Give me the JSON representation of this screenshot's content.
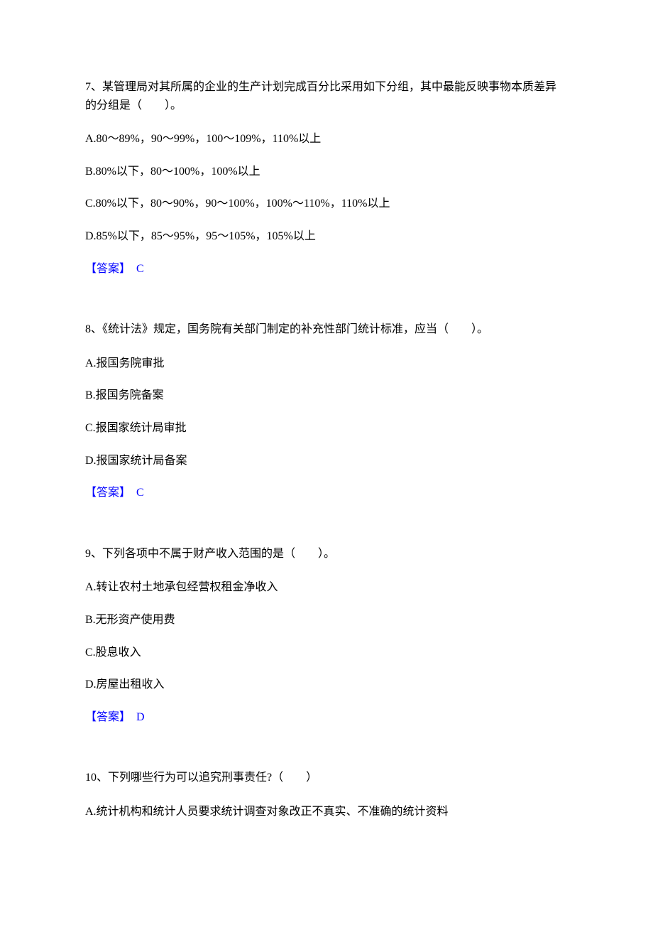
{
  "text_color": "#000000",
  "answer_color": "#0000ff",
  "background_color": "#ffffff",
  "font_family": "SimSun",
  "font_size": 16,
  "questions": [
    {
      "number": "7、",
      "text": "某管理局对其所属的企业的生产计划完成百分比采用如下分组，其中最能反映事物本质差异的分组是（　　）。",
      "options": [
        "A.80～89%，90～99%，100～109%，110%以上",
        "B.80%以下，80～100%，100%以上",
        "C.80%以下，80～90%，90～100%，100%～110%，110%以上",
        "D.85%以下，85～95%，95～105%，105%以上"
      ],
      "answer_label": "【答案】",
      "answer_value": "C"
    },
    {
      "number": "8、",
      "text": "《统计法》规定，国务院有关部门制定的补充性部门统计标准，应当（　　）。",
      "options": [
        "A.报国务院审批",
        "B.报国务院备案",
        "C.报国家统计局审批",
        "D.报国家统计局备案"
      ],
      "answer_label": "【答案】",
      "answer_value": "C"
    },
    {
      "number": "9、",
      "text": "下列各项中不属于财产收入范围的是（　　）。",
      "options": [
        "A.转让农村土地承包经营权租金净收入",
        "B.无形资产使用费",
        "C.股息收入",
        "D.房屋出租收入"
      ],
      "answer_label": "【答案】",
      "answer_value": "D"
    },
    {
      "number": "10、",
      "text": "下列哪些行为可以追究刑事责任?（　　）",
      "options": [
        "A.统计机构和统计人员要求统计调查对象改正不真实、不准确的统计资料"
      ],
      "answer_label": "",
      "answer_value": ""
    }
  ]
}
